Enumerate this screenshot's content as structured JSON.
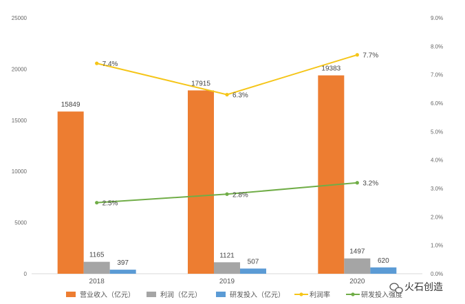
{
  "chart_data": {
    "type": "bar",
    "categories": [
      "2018",
      "2019",
      "2020"
    ],
    "series": [
      {
        "name": "营业收入（亿元）",
        "type": "bar",
        "axis": "left",
        "color": "#ED7D31",
        "values": [
          15849,
          17915,
          19383
        ],
        "labels": [
          "15849",
          "17915",
          "19383"
        ]
      },
      {
        "name": "利润（亿元）",
        "type": "bar",
        "axis": "left",
        "color": "#A5A5A5",
        "values": [
          1165,
          1121,
          1497
        ],
        "labels": [
          "1165",
          "1121",
          "1497"
        ]
      },
      {
        "name": "研发投入（亿元）",
        "type": "bar",
        "axis": "left",
        "color": "#5B9BD5",
        "values": [
          397,
          507,
          620
        ],
        "labels": [
          "397",
          "507",
          "620"
        ]
      },
      {
        "name": "利润率",
        "type": "line",
        "axis": "right",
        "color": "#F5C518",
        "values": [
          7.4,
          6.3,
          7.7
        ],
        "labels": [
          "7.4%",
          "6.3%",
          "7.7%"
        ]
      },
      {
        "name": "研发投入强度",
        "type": "line",
        "axis": "right",
        "color": "#70AD47",
        "values": [
          2.5,
          2.8,
          3.2
        ],
        "labels": [
          "2.5%",
          "2.8%",
          "3.2%"
        ]
      }
    ],
    "y_left": {
      "min": 0,
      "max": 25000,
      "ticks": [
        "0",
        "5000",
        "10000",
        "15000",
        "20000",
        "25000"
      ]
    },
    "y_right": {
      "min": 0,
      "max": 9,
      "ticks": [
        "0.0%",
        "1.0%",
        "2.0%",
        "3.0%",
        "4.0%",
        "5.0%",
        "6.0%",
        "7.0%",
        "8.0%",
        "9.0%"
      ]
    },
    "grid": false,
    "legend_position": "bottom"
  },
  "watermark": {
    "text": "火石创造",
    "icon": "wechat-icon"
  }
}
